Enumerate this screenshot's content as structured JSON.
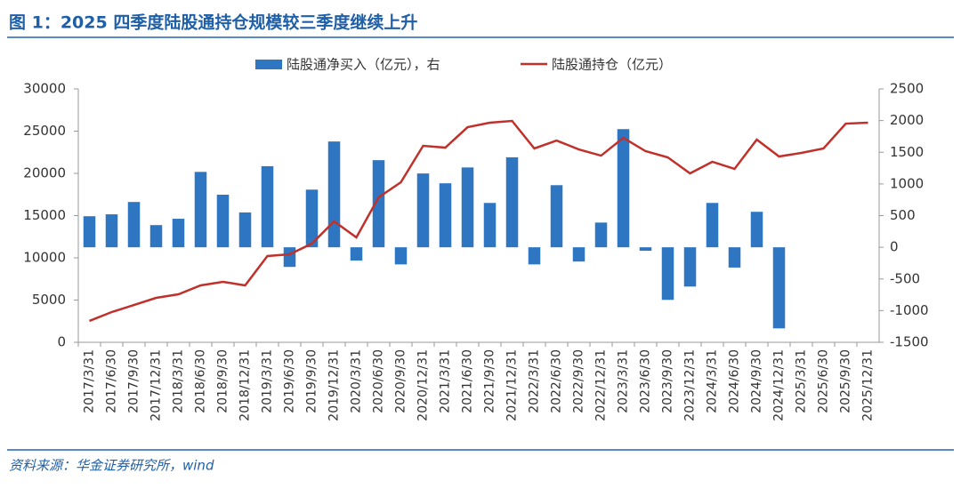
{
  "title": "图 1：2025 四季度陆股通持仓规模较三季度继续上升",
  "source": "资料来源：华金证券研究所，wind",
  "chart_data": {
    "type": "bar-line",
    "categories": [
      "2017/3/31",
      "2017/6/30",
      "2017/9/30",
      "2017/12/31",
      "2018/3/31",
      "2018/6/30",
      "2018/9/30",
      "2018/12/31",
      "2019/3/31",
      "2019/6/30",
      "2019/9/30",
      "2019/12/31",
      "2020/3/31",
      "2020/6/30",
      "2020/9/30",
      "2020/12/31",
      "2021/3/31",
      "2021/6/30",
      "2021/9/30",
      "2021/12/31",
      "2022/3/31",
      "2022/6/30",
      "2022/9/30",
      "2022/12/31",
      "2023/3/31",
      "2023/6/30",
      "2023/9/30",
      "2023/12/31",
      "2024/3/31",
      "2024/6/30",
      "2024/9/30",
      "2024/12/31",
      "2025/3/31",
      "2025/6/30",
      "2025/9/30",
      "2025/12/31"
    ],
    "series": [
      {
        "name": "陆股通净买入（亿元），右",
        "type": "bar",
        "axis": "y2",
        "color": "#2e75c2",
        "values": [
          490,
          520,
          715,
          350,
          450,
          1190,
          830,
          550,
          1280,
          -310,
          910,
          1670,
          -210,
          1375,
          -270,
          1165,
          1010,
          1260,
          700,
          1420,
          -270,
          980,
          -225,
          390,
          1865,
          -55,
          -830,
          -620,
          700,
          -320,
          560,
          -1280,
          null,
          null,
          null,
          null
        ]
      },
      {
        "name": "陆股通持仓（亿元）",
        "type": "line",
        "axis": "y",
        "color": "#c0312b",
        "values": [
          2530,
          3580,
          4420,
          5260,
          5680,
          6740,
          7160,
          6740,
          10210,
          10420,
          11680,
          14320,
          12420,
          17160,
          18950,
          23260,
          23050,
          25470,
          26000,
          26210,
          22950,
          23890,
          22840,
          22100,
          24210,
          22630,
          21890,
          20000,
          21370,
          20530,
          24000,
          22000,
          22420,
          22950,
          25890,
          26000
        ]
      }
    ],
    "ylim": [
      0,
      30000
    ],
    "yticks": [
      0,
      5000,
      10000,
      15000,
      20000,
      25000,
      30000
    ],
    "y2lim": [
      -1500,
      2500
    ],
    "y2ticks": [
      -1500,
      -1000,
      -500,
      0,
      500,
      1000,
      1500,
      2000,
      2500
    ]
  }
}
